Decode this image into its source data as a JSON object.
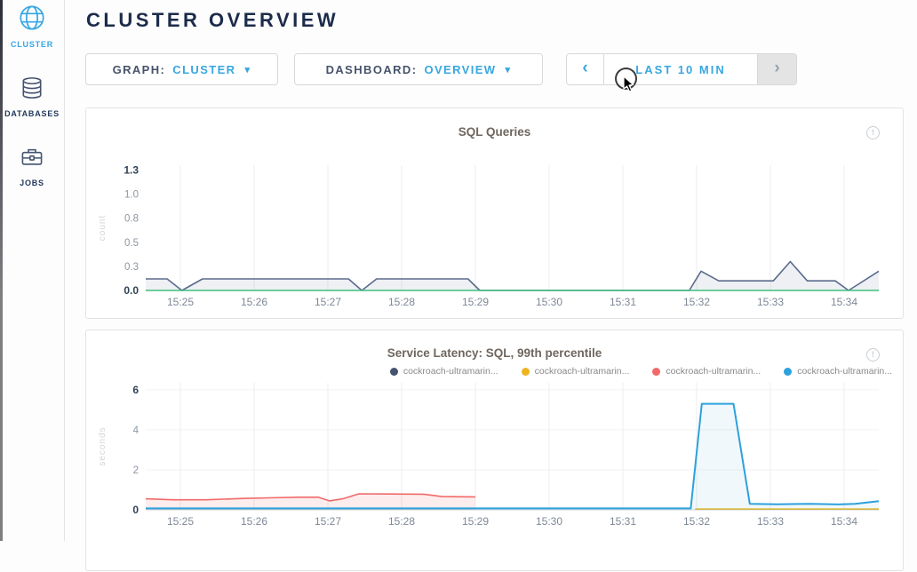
{
  "header": {
    "title": "CLUSTER OVERVIEW"
  },
  "sidebar": {
    "items": [
      {
        "label": "CLUSTER",
        "icon": "globe-icon",
        "active": true
      },
      {
        "label": "DATABASES",
        "icon": "databases-icon",
        "active": false
      },
      {
        "label": "JOBS",
        "icon": "briefcase-icon",
        "active": false
      }
    ]
  },
  "toolbar": {
    "graph_label": "GRAPH:",
    "graph_value": "CLUSTER",
    "dashboard_label": "DASHBOARD:",
    "dashboard_value": "OVERVIEW",
    "caret_icon": "▾",
    "time_range": "LAST 10 MIN",
    "prev_icon": "‹",
    "next_icon": "›"
  },
  "icons": {
    "info": "!"
  },
  "colors": {
    "accent": "#38a7e0",
    "heading": "#1c2b4a",
    "chart_title": "#6f675f",
    "axis_strong": "#2f4156",
    "axis_muted": "#8e96a3"
  },
  "chart_data": [
    {
      "type": "area",
      "title": "SQL Queries",
      "ylabel": "count",
      "ylim": [
        0,
        1.3
      ],
      "x_minutes_range": [
        24.53,
        34.47
      ],
      "yticks": [
        {
          "v": 0,
          "label": "0.0",
          "strong": true
        },
        {
          "v": 0.25,
          "label": "0.3"
        },
        {
          "v": 0.5,
          "label": "0.5"
        },
        {
          "v": 0.75,
          "label": "0.8"
        },
        {
          "v": 1.0,
          "label": "1.0"
        },
        {
          "v": 1.25,
          "label": "1.3",
          "strong": true
        }
      ],
      "xticks": [
        {
          "v": 25,
          "label": "15:25"
        },
        {
          "v": 26,
          "label": "15:26"
        },
        {
          "v": 27,
          "label": "15:27"
        },
        {
          "v": 28,
          "label": "15:28"
        },
        {
          "v": 29,
          "label": "15:29"
        },
        {
          "v": 30,
          "label": "15:30"
        },
        {
          "v": 31,
          "label": "15:31"
        },
        {
          "v": 32,
          "label": "15:32"
        },
        {
          "v": 33,
          "label": "15:33"
        },
        {
          "v": 34,
          "label": "15:34"
        }
      ],
      "series": [
        {
          "name": "node-queries",
          "color": "#5b6b8c",
          "fill": "rgba(91,107,140,0.10)",
          "width": 1.6,
          "points": [
            [
              24.53,
              0.12
            ],
            [
              24.82,
              0.12
            ],
            [
              25.02,
              0
            ],
            [
              25.3,
              0.12
            ],
            [
              27.28,
              0.12
            ],
            [
              27.46,
              0
            ],
            [
              27.66,
              0.12
            ],
            [
              28.9,
              0.12
            ],
            [
              29.06,
              0
            ],
            [
              31.9,
              0
            ],
            [
              32.06,
              0.2
            ],
            [
              32.3,
              0.1
            ],
            [
              33.04,
              0.1
            ],
            [
              33.27,
              0.3
            ],
            [
              33.5,
              0.1
            ],
            [
              33.88,
              0.1
            ],
            [
              34.06,
              0
            ],
            [
              34.47,
              0.2
            ]
          ]
        },
        {
          "name": "node-queries-zero",
          "color": "#3fbf7f",
          "fill": "none",
          "width": 1.4,
          "points": [
            [
              24.53,
              0
            ],
            [
              34.47,
              0
            ]
          ]
        }
      ]
    },
    {
      "type": "area",
      "title": "Service Latency: SQL, 99th percentile",
      "ylabel": "seconds",
      "ylim": [
        0,
        6.35
      ],
      "x_minutes_range": [
        24.53,
        34.47
      ],
      "yticks": [
        {
          "v": 0,
          "label": "0",
          "strong": true
        },
        {
          "v": 2,
          "label": "2"
        },
        {
          "v": 4,
          "label": "4"
        },
        {
          "v": 6,
          "label": "6",
          "strong": true
        }
      ],
      "xticks": [
        {
          "v": 25,
          "label": "15:25"
        },
        {
          "v": 26,
          "label": "15:26"
        },
        {
          "v": 27,
          "label": "15:27"
        },
        {
          "v": 28,
          "label": "15:28"
        },
        {
          "v": 29,
          "label": "15:29"
        },
        {
          "v": 30,
          "label": "15:30"
        },
        {
          "v": 31,
          "label": "15:31"
        },
        {
          "v": 32,
          "label": "15:32"
        },
        {
          "v": 33,
          "label": "15:33"
        },
        {
          "v": 34,
          "label": "15:34"
        }
      ],
      "legend": [
        {
          "label": "cockroach-ultramarin...",
          "color": "#46536e"
        },
        {
          "label": "cockroach-ultramarin...",
          "color": "#eeb41f"
        },
        {
          "label": "cockroach-ultramarin...",
          "color": "#f26969"
        },
        {
          "label": "cockroach-ultramarin...",
          "color": "#2da1db"
        }
      ],
      "series": [
        {
          "name": "node-latency-red",
          "color": "#f26969",
          "fill": "rgba(242,105,105,0.12)",
          "width": 1.6,
          "points": [
            [
              24.53,
              0.55
            ],
            [
              24.9,
              0.5
            ],
            [
              25.35,
              0.5
            ],
            [
              25.85,
              0.57
            ],
            [
              26.2,
              0.6
            ],
            [
              26.6,
              0.63
            ],
            [
              26.87,
              0.63
            ],
            [
              27.02,
              0.45
            ],
            [
              27.2,
              0.55
            ],
            [
              27.42,
              0.8
            ],
            [
              27.85,
              0.79
            ],
            [
              28.3,
              0.78
            ],
            [
              28.55,
              0.66
            ],
            [
              29.0,
              0.65
            ]
          ]
        },
        {
          "name": "node-latency-yellow",
          "color": "#e3b71e",
          "fill": "none",
          "width": 1.5,
          "points": [
            [
              31.98,
              0.04
            ],
            [
              34.47,
              0.04
            ]
          ]
        },
        {
          "name": "node-latency-blue",
          "color": "#2da1db",
          "fill": "rgba(45,161,219,0.07)",
          "width": 2,
          "points": [
            [
              24.53,
              0.07
            ],
            [
              31.92,
              0.07
            ],
            [
              32.07,
              5.3
            ],
            [
              32.5,
              5.3
            ],
            [
              32.72,
              0.3
            ],
            [
              33.1,
              0.28
            ],
            [
              33.55,
              0.3
            ],
            [
              33.92,
              0.27
            ],
            [
              34.15,
              0.3
            ],
            [
              34.47,
              0.43
            ]
          ]
        }
      ]
    }
  ]
}
